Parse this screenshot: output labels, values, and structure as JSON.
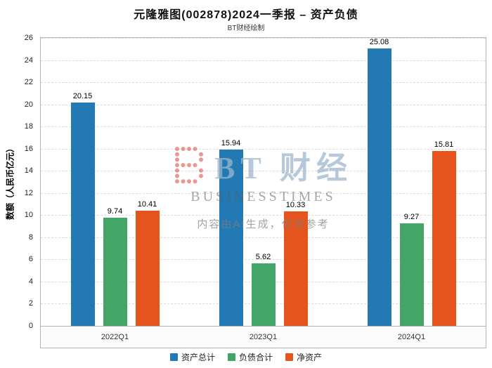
{
  "header": {
    "title": "元隆雅图(002878)2024一季报 – 资产负债",
    "subtitle": "BT财经绘制"
  },
  "watermark": {
    "logo_text": "BT 财经",
    "brand_text": "BUSINESSTIMES",
    "disclaimer": "内容由AI生成，仅供参考"
  },
  "chart_data": {
    "type": "bar",
    "title": "元隆雅图(002878)2024一季报 – 资产负债",
    "categories": [
      "2022Q1",
      "2023Q1",
      "2024Q1"
    ],
    "series": [
      {
        "name": "资产总计",
        "color": "#2379B4",
        "values": [
          20.15,
          15.94,
          25.08
        ]
      },
      {
        "name": "负债合计",
        "color": "#43A567",
        "values": [
          9.74,
          5.62,
          9.27
        ]
      },
      {
        "name": "净资产",
        "color": "#E5541C",
        "values": [
          10.41,
          10.33,
          15.81
        ]
      }
    ],
    "xlabel": "",
    "ylabel": "数额（人民币亿元）",
    "ylim": [
      0,
      26
    ],
    "ytick_step": 2,
    "grid": true,
    "grid_style": "dashed",
    "legend_position": "bottom"
  }
}
